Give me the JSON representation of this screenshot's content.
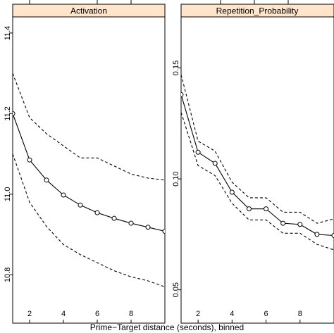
{
  "chart_data": [
    {
      "type": "line",
      "title": "Activation",
      "xlabel": "Prime−Target distance (seconds), binned",
      "xlim": [
        1,
        10
      ],
      "ylim": [
        10.68,
        11.44
      ],
      "xticks": [
        2,
        4,
        6,
        8
      ],
      "xtick_labels": [
        "2",
        "4",
        "6",
        "8"
      ],
      "yticks": [
        10.8,
        11.0,
        11.2,
        11.4
      ],
      "ytick_labels": [
        "10.8",
        "11.0",
        "11.2",
        "11.4"
      ],
      "series": [
        {
          "role": "fit",
          "x": [
            1,
            2,
            3,
            4,
            5,
            6,
            7,
            8,
            9,
            10
          ],
          "y": [
            11.2,
            11.085,
            11.035,
            10.998,
            10.973,
            10.954,
            10.94,
            10.928,
            10.918,
            10.908
          ]
        },
        {
          "role": "upper",
          "x": [
            1,
            2,
            3,
            4,
            5,
            6,
            7,
            8,
            9,
            10
          ],
          "y": [
            11.3,
            11.19,
            11.15,
            11.12,
            11.09,
            11.09,
            11.07,
            11.05,
            11.04,
            11.035
          ]
        },
        {
          "role": "lower",
          "x": [
            1,
            2,
            3,
            4,
            5,
            6,
            7,
            8,
            9,
            10
          ],
          "y": [
            11.1,
            10.98,
            10.92,
            10.875,
            10.85,
            10.83,
            10.81,
            10.795,
            10.785,
            10.77
          ]
        }
      ],
      "grid": false,
      "legend": "none"
    },
    {
      "type": "line",
      "title": "Repetition_Probability",
      "xlabel": "Prime−Target distance (seconds), binned",
      "xlim": [
        1,
        10
      ],
      "ylim": [
        0.035,
        0.173
      ],
      "xticks": [
        2,
        4,
        6,
        8
      ],
      "xtick_labels": [
        "2",
        "4",
        "6",
        "8"
      ],
      "yticks": [
        0.05,
        0.1,
        0.15
      ],
      "ytick_labels": [
        "0.05",
        "0.10",
        "0.15"
      ],
      "series": [
        {
          "role": "fit",
          "x": [
            1,
            2,
            3,
            4,
            5,
            6,
            7,
            8,
            9,
            10
          ],
          "y": [
            0.138,
            0.112,
            0.107,
            0.094,
            0.0865,
            0.0865,
            0.08,
            0.0795,
            0.075,
            0.0745
          ]
        },
        {
          "role": "upper",
          "x": [
            1,
            2,
            3,
            4,
            5,
            6,
            7,
            8,
            9,
            10
          ],
          "y": [
            0.147,
            0.117,
            0.1125,
            0.0985,
            0.0915,
            0.0915,
            0.085,
            0.085,
            0.08,
            0.082
          ]
        },
        {
          "role": "lower",
          "x": [
            1,
            2,
            3,
            4,
            5,
            6,
            7,
            8,
            9,
            10
          ],
          "y": [
            0.13,
            0.106,
            0.1015,
            0.089,
            0.0815,
            0.0815,
            0.0755,
            0.0755,
            0.0705,
            0.068
          ]
        }
      ],
      "grid": false,
      "legend": "none"
    }
  ],
  "strip_color": "#ffe5cc"
}
